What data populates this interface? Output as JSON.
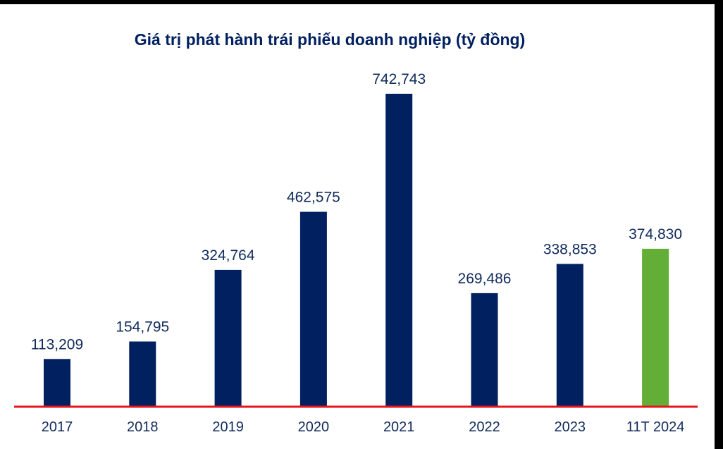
{
  "colors": {
    "bar": "#012060",
    "highlight_bar": "#62AE36",
    "baseline": "#E8141C",
    "text": "#0F2A5A",
    "title": "#012060",
    "background": "#FFFFFF",
    "outer": "#000000"
  },
  "chart_data": {
    "type": "bar",
    "title": "Giá trị phát hành trái phiếu doanh nghiệp (tỷ đồng)",
    "xlabel": "",
    "ylabel": "",
    "categories": [
      "2017",
      "2018",
      "2019",
      "2020",
      "2021",
      "2022",
      "2023",
      "11T 2024"
    ],
    "values": [
      113209,
      154795,
      324764,
      462575,
      742743,
      269486,
      338853,
      374830
    ],
    "data_labels": [
      "113,209",
      "154,795",
      "324,764",
      "462,575",
      "742,743",
      "269,486",
      "338,853",
      "374,830"
    ],
    "highlight_index": 7,
    "ylim": [
      0,
      742743
    ],
    "grid": false,
    "legend": "none"
  }
}
